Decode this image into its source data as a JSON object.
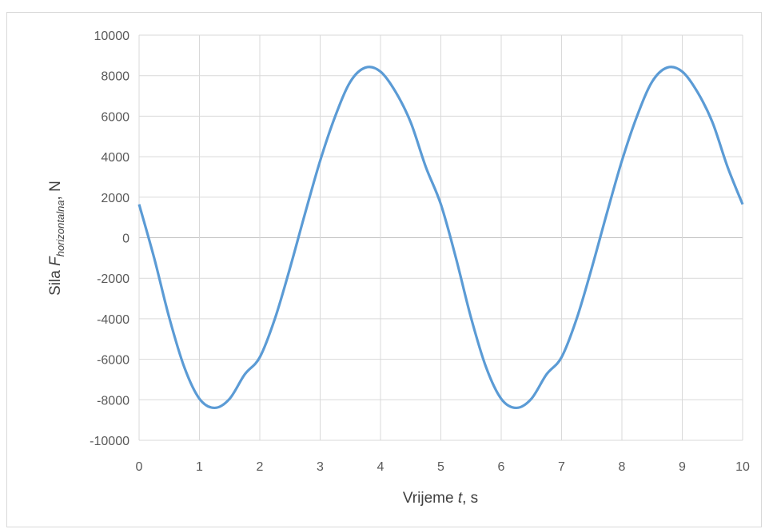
{
  "chart_data": {
    "type": "line",
    "title": "",
    "xlabel": {
      "prefix": "Vrijeme ",
      "var": "t",
      "suffix": ", s"
    },
    "ylabel": {
      "prefix": "Sila ",
      "var": "F",
      "sub": "horizontalna",
      "suffix": ", N"
    },
    "xlim": [
      0,
      10
    ],
    "ylim": [
      -10000,
      10000
    ],
    "xticks": [
      0,
      1,
      2,
      3,
      4,
      5,
      6,
      7,
      8,
      9,
      10
    ],
    "yticks": [
      10000,
      8000,
      6000,
      4000,
      2000,
      0,
      -2000,
      -4000,
      -6000,
      -8000,
      -10000
    ],
    "grid": true,
    "legend": "none",
    "series": [
      {
        "color": "#5b9bd5",
        "x": [
          0,
          0.25,
          0.5,
          0.75,
          1.0,
          1.25,
          1.5,
          1.75,
          2.0,
          2.25,
          2.5,
          2.75,
          3.0,
          3.25,
          3.5,
          3.75,
          4.0,
          4.25,
          4.5,
          4.75,
          5.0,
          5.25,
          5.5,
          5.75,
          6.0,
          6.25,
          6.5,
          6.75,
          7.0,
          7.25,
          7.5,
          7.75,
          8.0,
          8.25,
          8.5,
          8.75,
          9.0,
          9.25,
          9.5,
          9.75,
          10.0
        ],
        "y": [
          1650,
          -1000,
          -3950,
          -6400,
          -7950,
          -8400,
          -7950,
          -6750,
          -5900,
          -4000,
          -1500,
          1200,
          3800,
          6000,
          7700,
          8400,
          8200,
          7200,
          5700,
          3500,
          1650,
          -1000,
          -3950,
          -6400,
          -7950,
          -8400,
          -7950,
          -6750,
          -5900,
          -4000,
          -1500,
          1200,
          3800,
          6000,
          7700,
          8400,
          8200,
          7200,
          5700,
          3500,
          1650
        ]
      }
    ]
  }
}
